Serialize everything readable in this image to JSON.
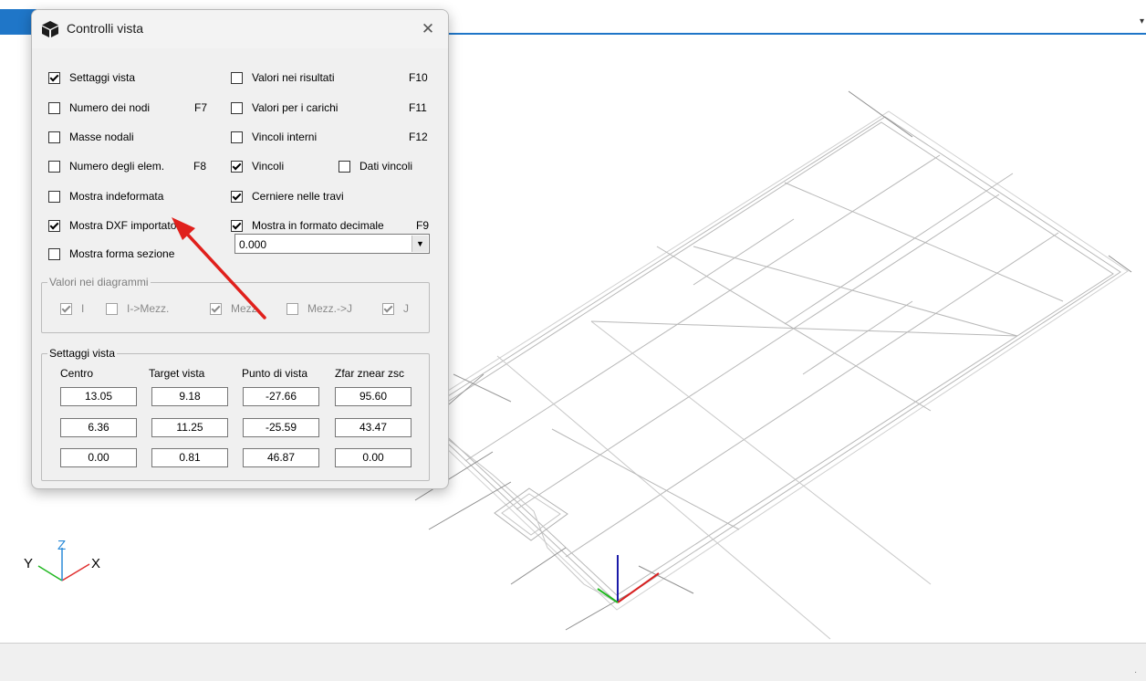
{
  "dialog": {
    "title": "Controlli vista",
    "checkboxes_left": [
      {
        "label": "Settaggi vista",
        "checked": true
      },
      {
        "label": "Numero dei nodi",
        "checked": false,
        "key": "F7"
      },
      {
        "label": "Masse nodali",
        "checked": false
      },
      {
        "label": "Numero degli elem.",
        "checked": false,
        "key": "F8"
      },
      {
        "label": "Mostra indeformata",
        "checked": false
      },
      {
        "label": "Mostra DXF importato",
        "checked": true
      },
      {
        "label": "Mostra forma sezione",
        "checked": false
      }
    ],
    "checkboxes_right": [
      {
        "label": "Valori nei risultati",
        "checked": false,
        "key": "F10"
      },
      {
        "label": "Valori per i carichi",
        "checked": false,
        "key": "F11"
      },
      {
        "label": "Vincoli interni",
        "checked": false,
        "key": "F12"
      },
      {
        "label": "Vincoli",
        "checked": true
      },
      {
        "label": "Cerniere nelle travi",
        "checked": true
      },
      {
        "label": "Mostra in formato decimale",
        "checked": true,
        "key": "F9"
      }
    ],
    "dati_vincoli": {
      "label": "Dati vincoli",
      "checked": false
    },
    "decimal_combo": {
      "value": "0.000"
    },
    "diagram_group": {
      "legend": "Valori nei diagrammi",
      "items": [
        {
          "label": "I",
          "checked": true
        },
        {
          "label": "I->Mezz.",
          "checked": false
        },
        {
          "label": "Mezz.",
          "checked": true
        },
        {
          "label": "Mezz.->J",
          "checked": false
        },
        {
          "label": "J",
          "checked": true
        }
      ]
    },
    "view_group": {
      "legend": "Settaggi vista",
      "headers": [
        "Centro",
        "Target vista",
        "Punto di vista",
        "Zfar znear zsc"
      ],
      "rows": [
        [
          "13.05",
          "9.18",
          "-27.66",
          "95.60"
        ],
        [
          "6.36",
          "11.25",
          "-25.59",
          "43.47"
        ],
        [
          "0.00",
          "0.81",
          "46.87",
          "0.00"
        ]
      ]
    }
  },
  "axis_labels": {
    "x": "X",
    "y": "Y",
    "z": "Z"
  },
  "colors": {
    "accent": "#1f76c8",
    "annotation_arrow": "#e0201c",
    "axis_x": "#e03030",
    "axis_y": "#2bb52b",
    "axis_z": "#2a8ad8"
  },
  "status_text": "."
}
